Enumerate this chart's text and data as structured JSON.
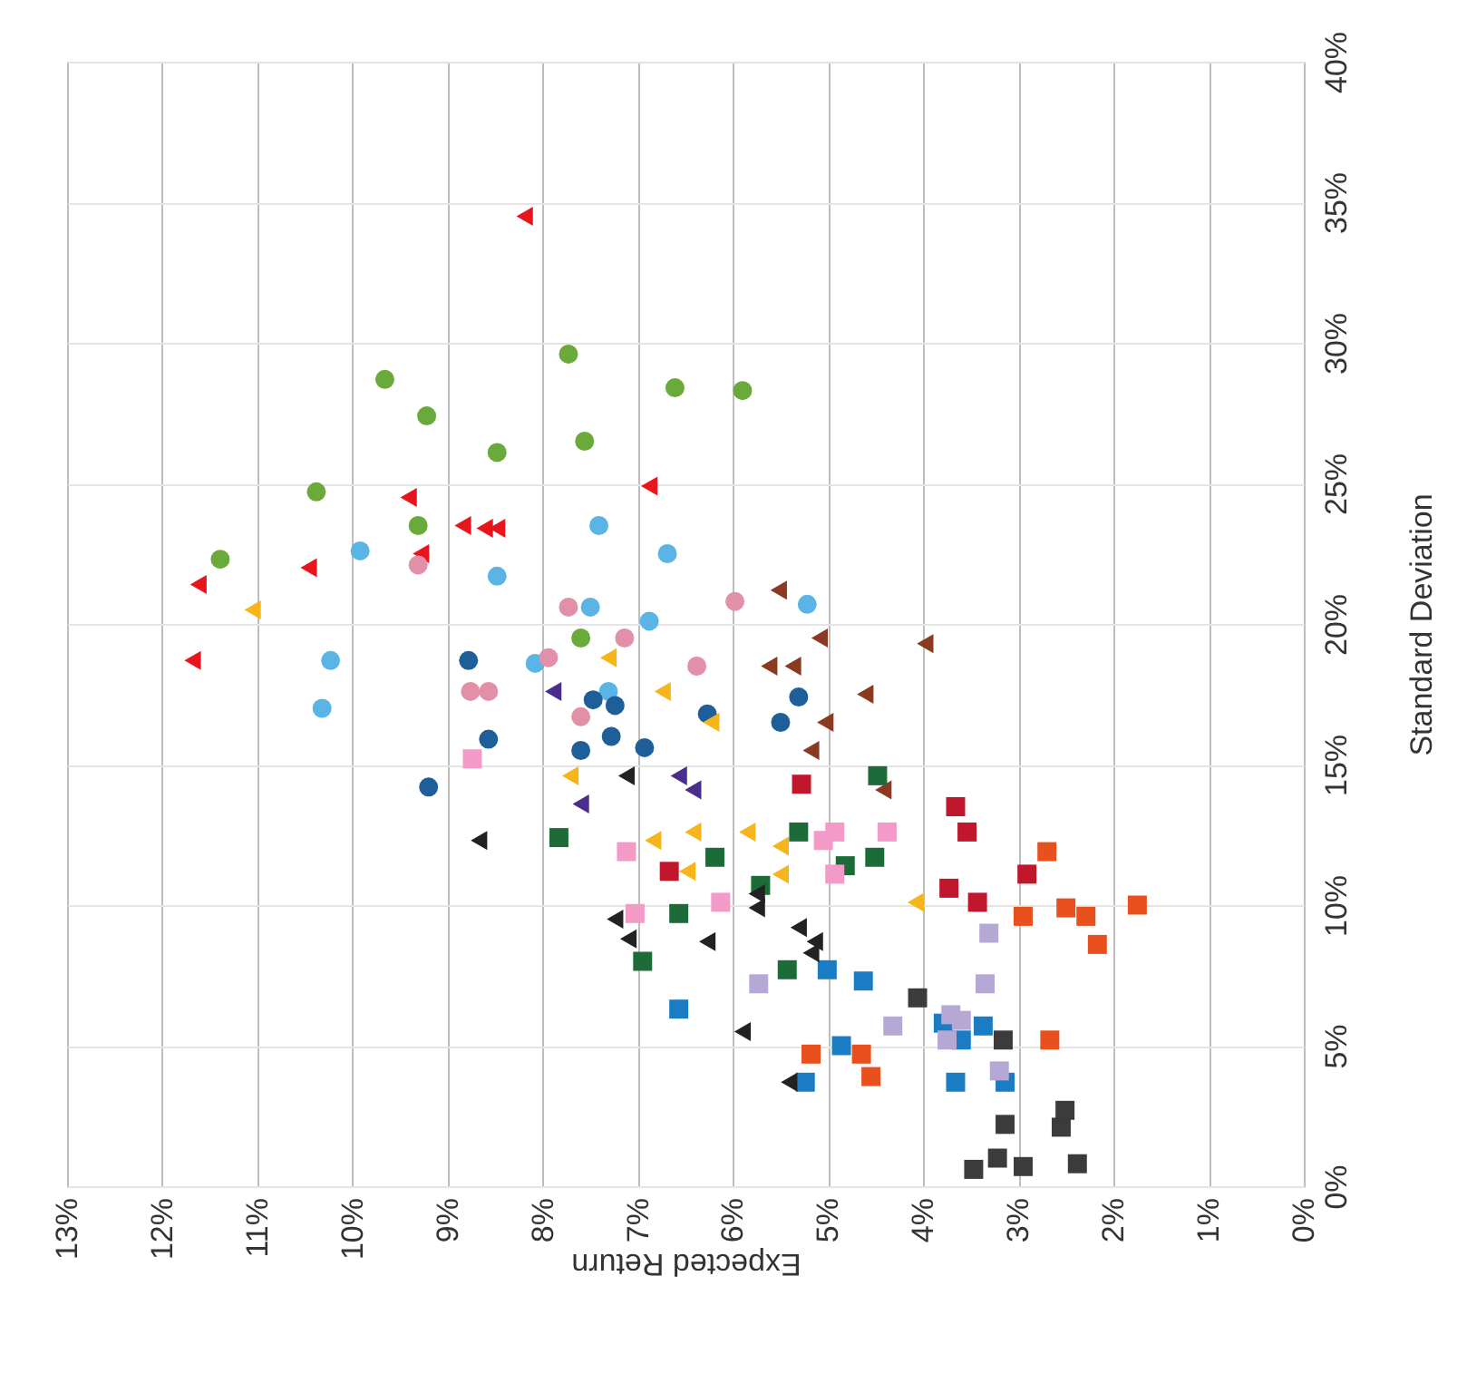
{
  "chart_data": {
    "type": "scatter",
    "xlabel": "Expected Return",
    "ylabel": "Standard Deviation",
    "legend": false,
    "grid": true,
    "xlim": [
      13,
      0
    ],
    "ylim": [
      0,
      40
    ],
    "xticks": [
      {
        "value": 13,
        "label": "13%"
      },
      {
        "value": 12,
        "label": "12%"
      },
      {
        "value": 11,
        "label": "11%"
      },
      {
        "value": 10,
        "label": "10%"
      },
      {
        "value": 9,
        "label": "9%"
      },
      {
        "value": 8,
        "label": "8%"
      },
      {
        "value": 7,
        "label": "7%"
      },
      {
        "value": 6,
        "label": "6%"
      },
      {
        "value": 5,
        "label": "5%"
      },
      {
        "value": 4,
        "label": "4%"
      },
      {
        "value": 3,
        "label": "3%"
      },
      {
        "value": 2,
        "label": "2%"
      },
      {
        "value": 1,
        "label": "1%"
      },
      {
        "value": 0,
        "label": "0%"
      }
    ],
    "yticks": [
      {
        "value": 0,
        "label": "0%"
      },
      {
        "value": 5,
        "label": "5%"
      },
      {
        "value": 10,
        "label": "10%"
      },
      {
        "value": 15,
        "label": "15%"
      },
      {
        "value": 20,
        "label": "20%"
      },
      {
        "value": 25,
        "label": "25%"
      },
      {
        "value": 30,
        "label": "30%"
      },
      {
        "value": 35,
        "label": "35%"
      },
      {
        "value": 40,
        "label": "40%"
      }
    ],
    "series": [
      {
        "color": "#e8151d",
        "marker": "triangle",
        "x": [
          8.19,
          11.62,
          11.68,
          10.46,
          9.41,
          9.28,
          8.84,
          8.61,
          8.48,
          6.88
        ],
        "values": [
          34.5,
          21.4,
          18.7,
          22.0,
          24.5,
          22.5,
          23.5,
          23.4,
          23.4,
          24.9
        ]
      },
      {
        "color": "#6aaa3a",
        "marker": "circle",
        "x": [
          9.66,
          9.22,
          10.38,
          9.31,
          8.48,
          7.73,
          7.56,
          11.39,
          7.6,
          6.61,
          5.9
        ],
        "values": [
          28.7,
          27.4,
          24.7,
          23.5,
          26.1,
          29.6,
          26.5,
          22.3,
          19.5,
          28.4,
          28.3
        ]
      },
      {
        "color": "#5ab4e5",
        "marker": "circle",
        "x": [
          9.92,
          8.48,
          7.41,
          10.23,
          10.32,
          7.5,
          6.88,
          6.69,
          5.22,
          8.08,
          7.31
        ],
        "values": [
          22.6,
          21.7,
          23.5,
          18.7,
          17.0,
          20.6,
          20.1,
          22.5,
          20.7,
          18.6,
          17.6
        ]
      },
      {
        "color": "#e28fa8",
        "marker": "circle",
        "x": [
          9.31,
          7.73,
          7.14,
          7.94,
          8.76,
          8.57,
          7.6,
          5.98,
          6.38
        ],
        "values": [
          22.1,
          20.6,
          19.5,
          18.8,
          17.6,
          17.6,
          16.7,
          20.8,
          18.5
        ]
      },
      {
        "color": "#1f5f99",
        "marker": "circle",
        "x": [
          8.78,
          7.47,
          7.24,
          5.31,
          8.57,
          7.6,
          7.28,
          6.93,
          5.5,
          9.2,
          6.27
        ],
        "values": [
          18.7,
          17.3,
          17.1,
          17.4,
          15.9,
          15.5,
          16.0,
          15.6,
          16.5,
          14.2,
          16.8
        ]
      },
      {
        "color": "#f7b51c",
        "marker": "triangle",
        "x": [
          11.05,
          7.31,
          6.74,
          6.23,
          7.71,
          6.84,
          6.42,
          5.85,
          5.5,
          6.48,
          5.5,
          4.08
        ],
        "values": [
          20.5,
          18.8,
          17.6,
          16.5,
          14.6,
          12.3,
          12.6,
          12.6,
          12.1,
          11.2,
          11.1,
          10.1
        ]
      },
      {
        "color": "#4b2d8e",
        "marker": "triangle",
        "x": [
          7.89,
          7.6,
          6.57,
          6.42
        ],
        "values": [
          17.6,
          13.6,
          14.6,
          14.1
        ]
      },
      {
        "color": "#8b3a22",
        "marker": "triangle",
        "x": [
          5.52,
          5.09,
          5.62,
          5.37,
          3.98,
          4.61,
          5.03,
          5.18,
          4.42
        ],
        "values": [
          21.2,
          19.5,
          18.5,
          18.5,
          19.3,
          17.5,
          16.5,
          15.5,
          14.1
        ]
      },
      {
        "color": "#1e6b3a",
        "marker": "square",
        "x": [
          7.83,
          6.19,
          5.71,
          6.57,
          6.95,
          5.43,
          5.31,
          4.48,
          4.82,
          4.51
        ],
        "values": [
          12.4,
          11.7,
          10.7,
          9.7,
          8.0,
          7.7,
          12.6,
          14.6,
          11.4,
          11.7
        ]
      },
      {
        "color": "#f49ac8",
        "marker": "square",
        "x": [
          7.12,
          7.03,
          6.13,
          5.05,
          4.93,
          4.93,
          4.38,
          8.74
        ],
        "values": [
          11.9,
          9.7,
          10.1,
          12.3,
          12.6,
          11.1,
          12.6,
          15.2
        ]
      },
      {
        "color": "#c0172d",
        "marker": "square",
        "x": [
          5.28,
          6.67,
          3.66,
          3.54,
          3.73,
          3.43,
          2.91
        ],
        "values": [
          14.3,
          11.2,
          13.5,
          12.6,
          10.6,
          10.1,
          11.1
        ]
      },
      {
        "color": "#e8501e",
        "marker": "square",
        "x": [
          2.7,
          2.95,
          2.5,
          2.29,
          2.17,
          1.75,
          2.67,
          4.65,
          4.55,
          5.18
        ],
        "values": [
          11.9,
          9.6,
          9.9,
          9.6,
          8.6,
          10.0,
          5.2,
          4.7,
          3.9,
          4.7
        ]
      },
      {
        "color": "#1a7dc4",
        "marker": "square",
        "x": [
          6.57,
          5.01,
          4.63,
          4.86,
          5.24,
          3.37,
          3.66,
          3.14,
          3.6,
          3.79
        ],
        "values": [
          6.3,
          7.7,
          7.3,
          5.0,
          3.7,
          5.7,
          3.7,
          3.7,
          5.2,
          5.8
        ]
      },
      {
        "color": "#b6a8d4",
        "marker": "square",
        "x": [
          5.73,
          4.32,
          3.31,
          3.35,
          3.71,
          3.6,
          3.75,
          3.2
        ],
        "values": [
          7.2,
          5.7,
          9.0,
          7.2,
          6.1,
          5.9,
          5.2,
          4.1
        ]
      },
      {
        "color": "#3b3b3b",
        "marker": "square",
        "x": [
          4.06,
          3.16,
          3.14,
          2.51,
          2.55,
          3.47,
          3.22,
          2.95,
          2.38
        ],
        "values": [
          6.7,
          5.2,
          2.2,
          2.7,
          2.1,
          0.6,
          1.0,
          0.7,
          0.8
        ]
      },
      {
        "color": "#222222",
        "marker": "triangle",
        "x": [
          8.67,
          7.12,
          7.24,
          7.1,
          6.27,
          5.75,
          5.75,
          5.31,
          5.14,
          5.18,
          5.9,
          5.41
        ],
        "values": [
          12.3,
          14.6,
          9.5,
          8.8,
          8.7,
          9.9,
          10.4,
          9.2,
          8.7,
          8.3,
          5.5,
          3.7
        ]
      }
    ]
  }
}
